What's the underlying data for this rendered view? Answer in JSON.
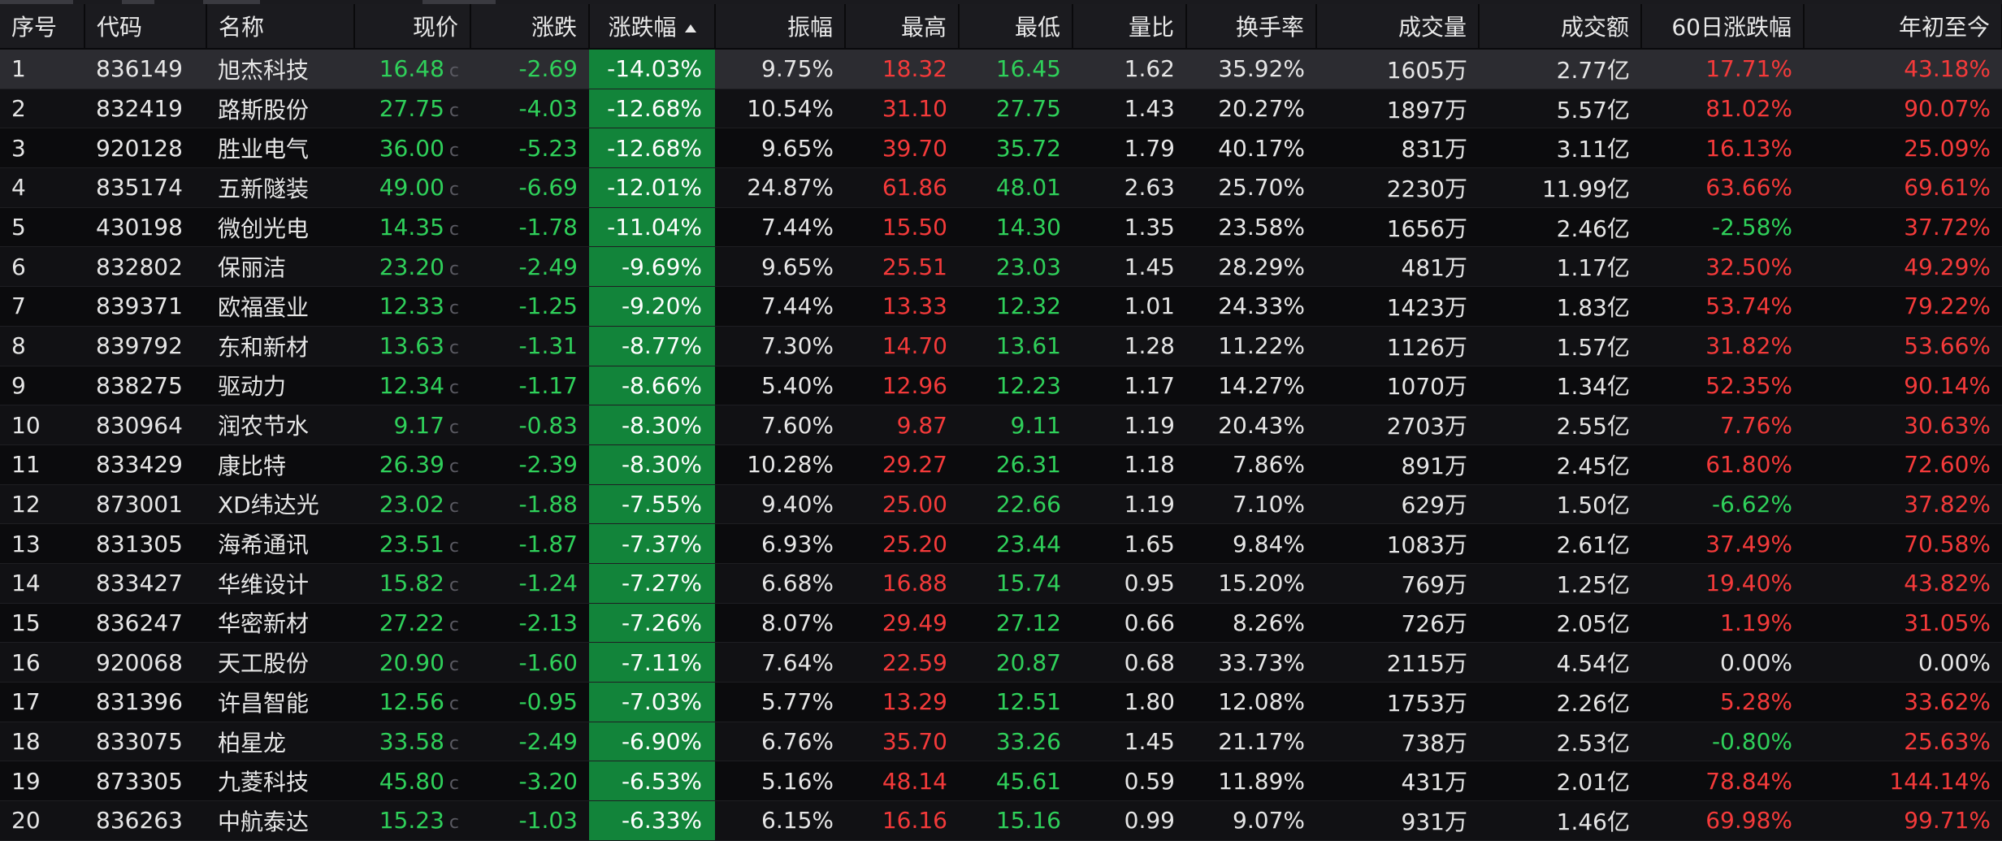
{
  "table": {
    "headers": [
      "序号",
      "代码",
      "名称",
      "现价",
      "涨跌",
      "涨跌幅",
      "振幅",
      "最高",
      "最低",
      "量比",
      "换手率",
      "成交量",
      "成交额",
      "60日涨跌幅",
      "年初至今"
    ],
    "price_suffix": "c",
    "sort_column": "涨跌幅",
    "sort_direction": "ascending",
    "rows": [
      {
        "idx": "1",
        "code": "836149",
        "name": "旭杰科技",
        "price": "16.48",
        "chg": "-2.69",
        "pct": "-14.03%",
        "amp": "9.75%",
        "high": "18.32",
        "high_c": "up",
        "low": "16.45",
        "low_c": "down",
        "vr": "1.62",
        "turn": "35.92%",
        "vol": "1605万",
        "amt": "2.77亿",
        "d60": "17.71%",
        "d60_c": "up",
        "ytd": "43.18%",
        "ytd_c": "up"
      },
      {
        "idx": "2",
        "code": "832419",
        "name": "路斯股份",
        "price": "27.75",
        "chg": "-4.03",
        "pct": "-12.68%",
        "amp": "10.54%",
        "high": "31.10",
        "high_c": "up",
        "low": "27.75",
        "low_c": "down",
        "vr": "1.43",
        "turn": "20.27%",
        "vol": "1897万",
        "amt": "5.57亿",
        "d60": "81.02%",
        "d60_c": "up",
        "ytd": "90.07%",
        "ytd_c": "up"
      },
      {
        "idx": "3",
        "code": "920128",
        "name": "胜业电气",
        "price": "36.00",
        "chg": "-5.23",
        "pct": "-12.68%",
        "amp": "9.65%",
        "high": "39.70",
        "high_c": "up",
        "low": "35.72",
        "low_c": "down",
        "vr": "1.79",
        "turn": "40.17%",
        "vol": "831万",
        "amt": "3.11亿",
        "d60": "16.13%",
        "d60_c": "up",
        "ytd": "25.09%",
        "ytd_c": "up"
      },
      {
        "idx": "4",
        "code": "835174",
        "name": "五新隧装",
        "price": "49.00",
        "chg": "-6.69",
        "pct": "-12.01%",
        "amp": "24.87%",
        "high": "61.86",
        "high_c": "rise",
        "low": "48.01",
        "low_c": "down",
        "vr": "2.63",
        "turn": "25.70%",
        "vol": "2230万",
        "amt": "11.99亿",
        "d60": "63.66%",
        "d60_c": "up",
        "ytd": "69.61%",
        "ytd_c": "up"
      },
      {
        "idx": "5",
        "code": "430198",
        "name": "微创光电",
        "price": "14.35",
        "chg": "-1.78",
        "pct": "-11.04%",
        "amp": "7.44%",
        "high": "15.50",
        "high_c": "up",
        "low": "14.30",
        "low_c": "down",
        "vr": "1.35",
        "turn": "23.58%",
        "vol": "1656万",
        "amt": "2.46亿",
        "d60": "-2.58%",
        "d60_c": "down",
        "ytd": "37.72%",
        "ytd_c": "up"
      },
      {
        "idx": "6",
        "code": "832802",
        "name": "保丽洁",
        "price": "23.20",
        "chg": "-2.49",
        "pct": "-9.69%",
        "amp": "9.65%",
        "high": "25.51",
        "high_c": "up",
        "low": "23.03",
        "low_c": "down",
        "vr": "1.45",
        "turn": "28.29%",
        "vol": "481万",
        "amt": "1.17亿",
        "d60": "32.50%",
        "d60_c": "up",
        "ytd": "49.29%",
        "ytd_c": "up"
      },
      {
        "idx": "7",
        "code": "839371",
        "name": "欧福蛋业",
        "price": "12.33",
        "chg": "-1.25",
        "pct": "-9.20%",
        "amp": "7.44%",
        "high": "13.33",
        "high_c": "up",
        "low": "12.32",
        "low_c": "down",
        "vr": "1.01",
        "turn": "24.33%",
        "vol": "1423万",
        "amt": "1.83亿",
        "d60": "53.74%",
        "d60_c": "up",
        "ytd": "79.22%",
        "ytd_c": "up"
      },
      {
        "idx": "8",
        "code": "839792",
        "name": "东和新材",
        "price": "13.63",
        "chg": "-1.31",
        "pct": "-8.77%",
        "amp": "7.30%",
        "high": "14.70",
        "high_c": "up",
        "low": "13.61",
        "low_c": "down",
        "vr": "1.28",
        "turn": "11.22%",
        "vol": "1126万",
        "amt": "1.57亿",
        "d60": "31.82%",
        "d60_c": "up",
        "ytd": "53.66%",
        "ytd_c": "up"
      },
      {
        "idx": "9",
        "code": "838275",
        "name": "驱动力",
        "price": "12.34",
        "chg": "-1.17",
        "pct": "-8.66%",
        "amp": "5.40%",
        "high": "12.96",
        "high_c": "up",
        "low": "12.23",
        "low_c": "down",
        "vr": "1.17",
        "turn": "14.27%",
        "vol": "1070万",
        "amt": "1.34亿",
        "d60": "52.35%",
        "d60_c": "up",
        "ytd": "90.14%",
        "ytd_c": "up"
      },
      {
        "idx": "10",
        "code": "830964",
        "name": "润农节水",
        "price": "9.17",
        "chg": "-0.83",
        "pct": "-8.30%",
        "amp": "7.60%",
        "high": "9.87",
        "high_c": "up",
        "low": "9.11",
        "low_c": "down",
        "vr": "1.19",
        "turn": "20.43%",
        "vol": "2703万",
        "amt": "2.55亿",
        "d60": "7.76%",
        "d60_c": "up",
        "ytd": "30.63%",
        "ytd_c": "up"
      },
      {
        "idx": "11",
        "code": "833429",
        "name": "康比特",
        "price": "26.39",
        "chg": "-2.39",
        "pct": "-8.30%",
        "amp": "10.28%",
        "high": "29.27",
        "high_c": "rise",
        "low": "26.31",
        "low_c": "down",
        "vr": "1.18",
        "turn": "7.86%",
        "vol": "891万",
        "amt": "2.45亿",
        "d60": "61.80%",
        "d60_c": "up",
        "ytd": "72.60%",
        "ytd_c": "up"
      },
      {
        "idx": "12",
        "code": "873001",
        "name": "XD纬达光",
        "price": "23.02",
        "chg": "-1.88",
        "pct": "-7.55%",
        "amp": "9.40%",
        "high": "25.00",
        "high_c": "rise",
        "low": "22.66",
        "low_c": "down",
        "vr": "1.19",
        "turn": "7.10%",
        "vol": "629万",
        "amt": "1.50亿",
        "d60": "-6.62%",
        "d60_c": "down",
        "ytd": "37.82%",
        "ytd_c": "up"
      },
      {
        "idx": "13",
        "code": "831305",
        "name": "海希通讯",
        "price": "23.51",
        "chg": "-1.87",
        "pct": "-7.37%",
        "amp": "6.93%",
        "high": "25.20",
        "high_c": "up",
        "low": "23.44",
        "low_c": "down",
        "vr": "1.65",
        "turn": "9.84%",
        "vol": "1083万",
        "amt": "2.61亿",
        "d60": "37.49%",
        "d60_c": "up",
        "ytd": "70.58%",
        "ytd_c": "up"
      },
      {
        "idx": "14",
        "code": "833427",
        "name": "华维设计",
        "price": "15.82",
        "chg": "-1.24",
        "pct": "-7.27%",
        "amp": "6.68%",
        "high": "16.88",
        "high_c": "up",
        "low": "15.74",
        "low_c": "down",
        "vr": "0.95",
        "turn": "15.20%",
        "vol": "769万",
        "amt": "1.25亿",
        "d60": "19.40%",
        "d60_c": "up",
        "ytd": "43.82%",
        "ytd_c": "up"
      },
      {
        "idx": "15",
        "code": "836247",
        "name": "华密新材",
        "price": "27.22",
        "chg": "-2.13",
        "pct": "-7.26%",
        "amp": "8.07%",
        "high": "29.49",
        "high_c": "rise",
        "low": "27.12",
        "low_c": "down",
        "vr": "0.66",
        "turn": "8.26%",
        "vol": "726万",
        "amt": "2.05亿",
        "d60": "1.19%",
        "d60_c": "up",
        "ytd": "31.05%",
        "ytd_c": "up"
      },
      {
        "idx": "16",
        "code": "920068",
        "name": "天工股份",
        "price": "20.90",
        "chg": "-1.60",
        "pct": "-7.11%",
        "amp": "7.64%",
        "high": "22.59",
        "high_c": "rise",
        "low": "20.87",
        "low_c": "down",
        "vr": "0.68",
        "turn": "33.73%",
        "vol": "2115万",
        "amt": "4.54亿",
        "d60": "0.00%",
        "d60_c": "flat",
        "ytd": "0.00%",
        "ytd_c": "flat"
      },
      {
        "idx": "17",
        "code": "831396",
        "name": "许昌智能",
        "price": "12.56",
        "chg": "-0.95",
        "pct": "-7.03%",
        "amp": "5.77%",
        "high": "13.29",
        "high_c": "up",
        "low": "12.51",
        "low_c": "down",
        "vr": "1.80",
        "turn": "12.08%",
        "vol": "1753万",
        "amt": "2.26亿",
        "d60": "5.28%",
        "d60_c": "up",
        "ytd": "33.62%",
        "ytd_c": "up"
      },
      {
        "idx": "18",
        "code": "833075",
        "name": "柏星龙",
        "price": "33.58",
        "chg": "-2.49",
        "pct": "-6.90%",
        "amp": "6.76%",
        "high": "35.70",
        "high_c": "up",
        "low": "33.26",
        "low_c": "down",
        "vr": "1.45",
        "turn": "21.17%",
        "vol": "738万",
        "amt": "2.53亿",
        "d60": "-0.80%",
        "d60_c": "down",
        "ytd": "25.63%",
        "ytd_c": "up"
      },
      {
        "idx": "19",
        "code": "873305",
        "name": "九菱科技",
        "price": "45.80",
        "chg": "-3.20",
        "pct": "-6.53%",
        "amp": "5.16%",
        "high": "48.14",
        "high_c": "up",
        "low": "45.61",
        "low_c": "down",
        "vr": "0.59",
        "turn": "11.89%",
        "vol": "431万",
        "amt": "2.01亿",
        "d60": "78.84%",
        "d60_c": "up",
        "ytd": "144.14%",
        "ytd_c": "up"
      },
      {
        "idx": "20",
        "code": "836263",
        "name": "中航泰达",
        "price": "15.23",
        "chg": "-1.03",
        "pct": "-6.33%",
        "amp": "6.15%",
        "high": "16.16",
        "high_c": "up",
        "low": "15.16",
        "low_c": "down",
        "vr": "0.99",
        "turn": "9.07%",
        "vol": "931万",
        "amt": "1.46亿",
        "d60": "69.98%",
        "d60_c": "up",
        "ytd": "99.71%",
        "ytd_c": "up"
      }
    ]
  },
  "colors": {
    "rise": "#f43a3a",
    "fall": "#2fd05a",
    "neutral": "#e6e6e6",
    "pct_cell_bg": "#12843a",
    "header_bg": "#1b1b1f",
    "selected_row_bg": "#2c2c31"
  },
  "icons": {
    "sort_indicator": "sort-ascending-arrow-icon"
  }
}
